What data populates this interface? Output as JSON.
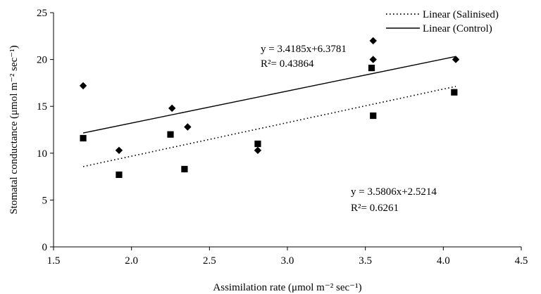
{
  "chart_data": {
    "type": "scatter",
    "xlabel": "Assimilation rate (μmol m⁻² sec⁻¹)",
    "ylabel": "Stomatal conductance (μmol m⁻² sec⁻¹)",
    "xlim": [
      1.5,
      4.5
    ],
    "ylim": [
      0,
      25
    ],
    "x_ticks": [
      "1.5",
      "2.0",
      "2.5",
      "3.0",
      "3.5",
      "4.0",
      "4.5"
    ],
    "y_ticks": [
      "0",
      "5",
      "10",
      "15",
      "20",
      "25"
    ],
    "grid": false,
    "legend_position": "top-right",
    "series": [
      {
        "marker": "diamond",
        "color": "#000000",
        "points": [
          [
            1.69,
            17.2
          ],
          [
            1.92,
            10.3
          ],
          [
            2.26,
            14.8
          ],
          [
            2.36,
            12.8
          ],
          [
            2.81,
            10.3
          ],
          [
            3.55,
            22.0
          ],
          [
            3.55,
            20.0
          ],
          [
            4.08,
            20.0
          ]
        ]
      },
      {
        "marker": "square",
        "color": "#000000",
        "points": [
          [
            1.69,
            11.6
          ],
          [
            1.92,
            7.7
          ],
          [
            2.25,
            12.0
          ],
          [
            2.34,
            8.3
          ],
          [
            2.81,
            11.0
          ],
          [
            3.54,
            19.1
          ],
          [
            3.55,
            14.0
          ],
          [
            4.07,
            16.5
          ]
        ]
      }
    ],
    "trendlines": [
      {
        "name": "Linear (Salinised)",
        "style": "dotted",
        "slope": 3.5806,
        "intercept": 2.5214,
        "x_range": [
          1.69,
          4.08
        ]
      },
      {
        "name": "Linear (Control)",
        "style": "solid",
        "slope": 3.4185,
        "intercept": 6.3781,
        "x_range": [
          1.69,
          4.08
        ]
      }
    ],
    "annotations": [
      {
        "equation": "y  = 3.4185x+6.3781",
        "r_squared": "R²= 0.43864",
        "position": "upper-middle"
      },
      {
        "equation": "y  = 3.5806x+2.5214",
        "r_squared": "R²= 0.6261",
        "position": "lower-right"
      }
    ]
  }
}
